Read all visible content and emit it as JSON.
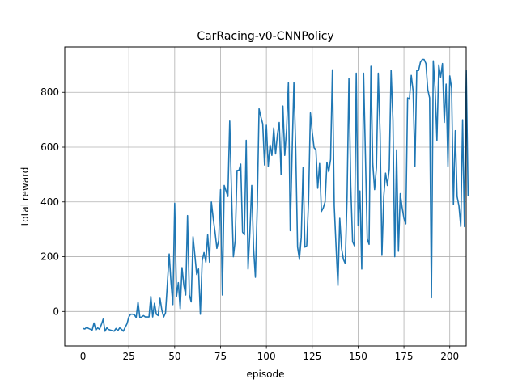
{
  "chart_data": {
    "type": "line",
    "title": "CarRacing-v0-CNNPolicy",
    "xlabel": "episode",
    "ylabel": "total reward",
    "xlim": [
      -9.95,
      208.95
    ],
    "ylim": [
      -126,
      966
    ],
    "xticks": [
      0,
      25,
      50,
      75,
      100,
      125,
      150,
      175,
      200
    ],
    "yticks": [
      0,
      200,
      400,
      600,
      800
    ],
    "grid": true,
    "line_color": "#1f77b4",
    "series": [
      {
        "values": [
          -62,
          -64,
          -58,
          -62,
          -65,
          -68,
          -42,
          -68,
          -60,
          -65,
          -48,
          -28,
          -72,
          -60,
          -66,
          -68,
          -70,
          -72,
          -62,
          -70,
          -60,
          -65,
          -72,
          -58,
          -45,
          -20,
          -10,
          -10,
          -12,
          -22,
          35,
          -22,
          -20,
          -15,
          -20,
          -20,
          -20,
          55,
          -20,
          30,
          -10,
          -15,
          48,
          5,
          -20,
          -5,
          100,
          210,
          105,
          25,
          395,
          55,
          105,
          10,
          160,
          95,
          60,
          350,
          60,
          35,
          273,
          205,
          135,
          155,
          -10,
          185,
          215,
          180,
          280,
          180,
          400,
          340,
          290,
          230,
          260,
          445,
          60,
          460,
          440,
          420,
          695,
          430,
          200,
          260,
          515,
          515,
          538,
          290,
          280,
          625,
          155,
          290,
          460,
          230,
          125,
          380,
          740,
          710,
          685,
          535,
          680,
          530,
          608,
          570,
          670,
          575,
          645,
          690,
          500,
          750,
          570,
          665,
          835,
          295,
          575,
          835,
          590,
          235,
          190,
          270,
          525,
          235,
          240,
          405,
          725,
          655,
          598,
          590,
          450,
          540,
          365,
          378,
          400,
          545,
          510,
          555,
          882,
          385,
          235,
          95,
          340,
          230,
          190,
          175,
          420,
          850,
          460,
          255,
          240,
          870,
          315,
          440,
          155,
          870,
          570,
          265,
          245,
          895,
          540,
          445,
          525,
          870,
          650,
          205,
          420,
          505,
          460,
          520,
          880,
          700,
          200,
          590,
          220,
          430,
          380,
          340,
          320,
          780,
          775,
          862,
          805,
          530,
          880,
          880,
          910,
          920,
          920,
          905,
          810,
          780,
          50,
          915,
          810,
          625,
          900,
          855,
          905,
          690,
          830,
          530,
          860,
          815,
          390,
          660,
          420,
          385,
          310,
          700,
          310,
          880,
          420
        ]
      }
    ]
  }
}
